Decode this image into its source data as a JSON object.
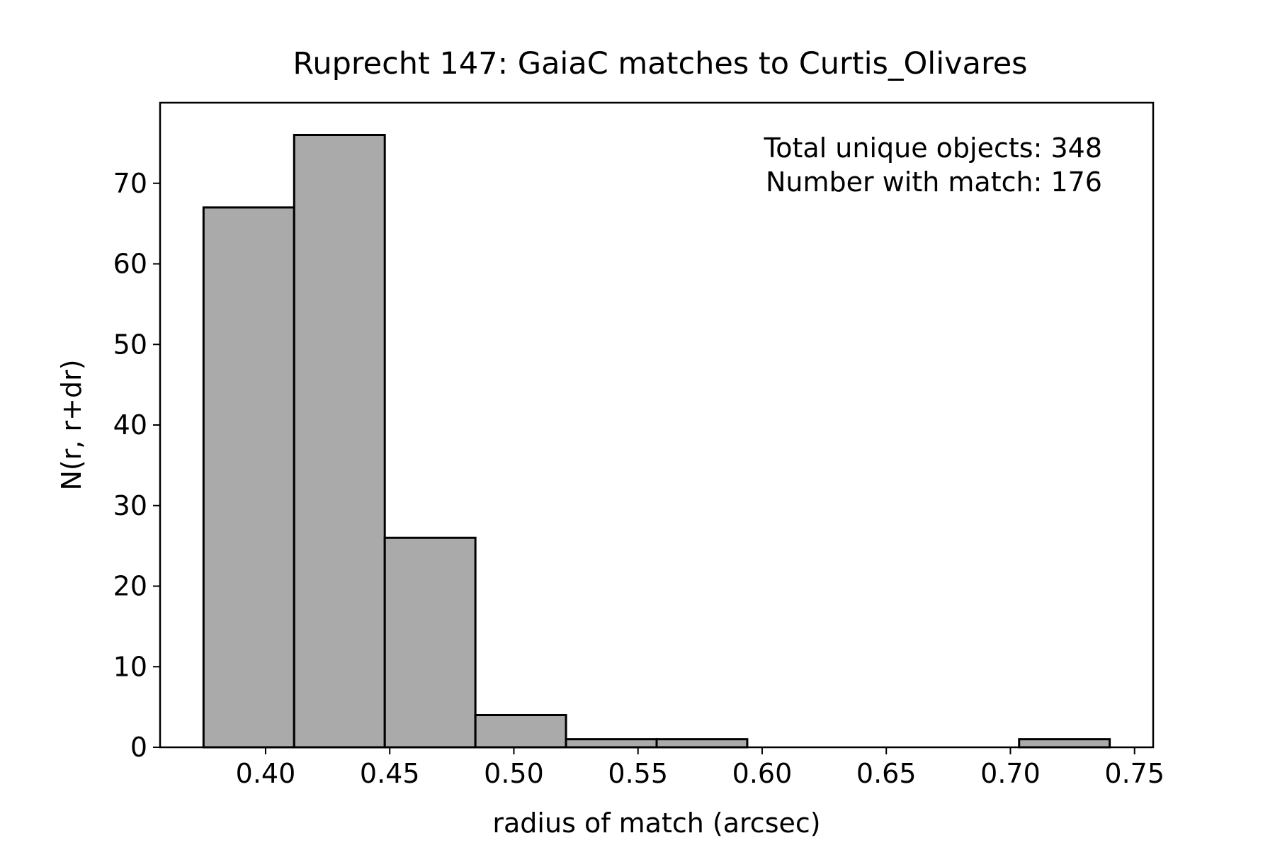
{
  "chart_data": {
    "type": "bar",
    "histogram": true,
    "title": "Ruprecht 147: GaiaC matches to Curtis_Olivares",
    "xlabel": "radius of match (arcsec)",
    "ylabel": "N(r, r+dr)",
    "xlim": [
      0.3575,
      0.7575
    ],
    "ylim": [
      0,
      80
    ],
    "bin_edges": [
      0.375,
      0.4115,
      0.448,
      0.4845,
      0.521,
      0.5575,
      0.594,
      0.6305,
      0.667,
      0.7035,
      0.74
    ],
    "counts": [
      67,
      76,
      26,
      4,
      1,
      1,
      0,
      0,
      0,
      1
    ],
    "xticks": [
      0.4,
      0.45,
      0.5,
      0.55,
      0.6,
      0.65,
      0.7,
      0.75
    ],
    "xtick_labels": [
      "0.40",
      "0.45",
      "0.50",
      "0.55",
      "0.60",
      "0.65",
      "0.70",
      "0.75"
    ],
    "yticks": [
      0,
      10,
      20,
      30,
      40,
      50,
      60,
      70
    ],
    "ytick_labels": [
      "0",
      "10",
      "20",
      "30",
      "40",
      "50",
      "60",
      "70"
    ],
    "annotation": {
      "lines": [
        "Total unique objects: 348",
        "Number with match: 176"
      ],
      "placement": "top-right"
    },
    "grid": false,
    "bar_fill": "#aaaaaa",
    "bar_edge": "#000000"
  }
}
